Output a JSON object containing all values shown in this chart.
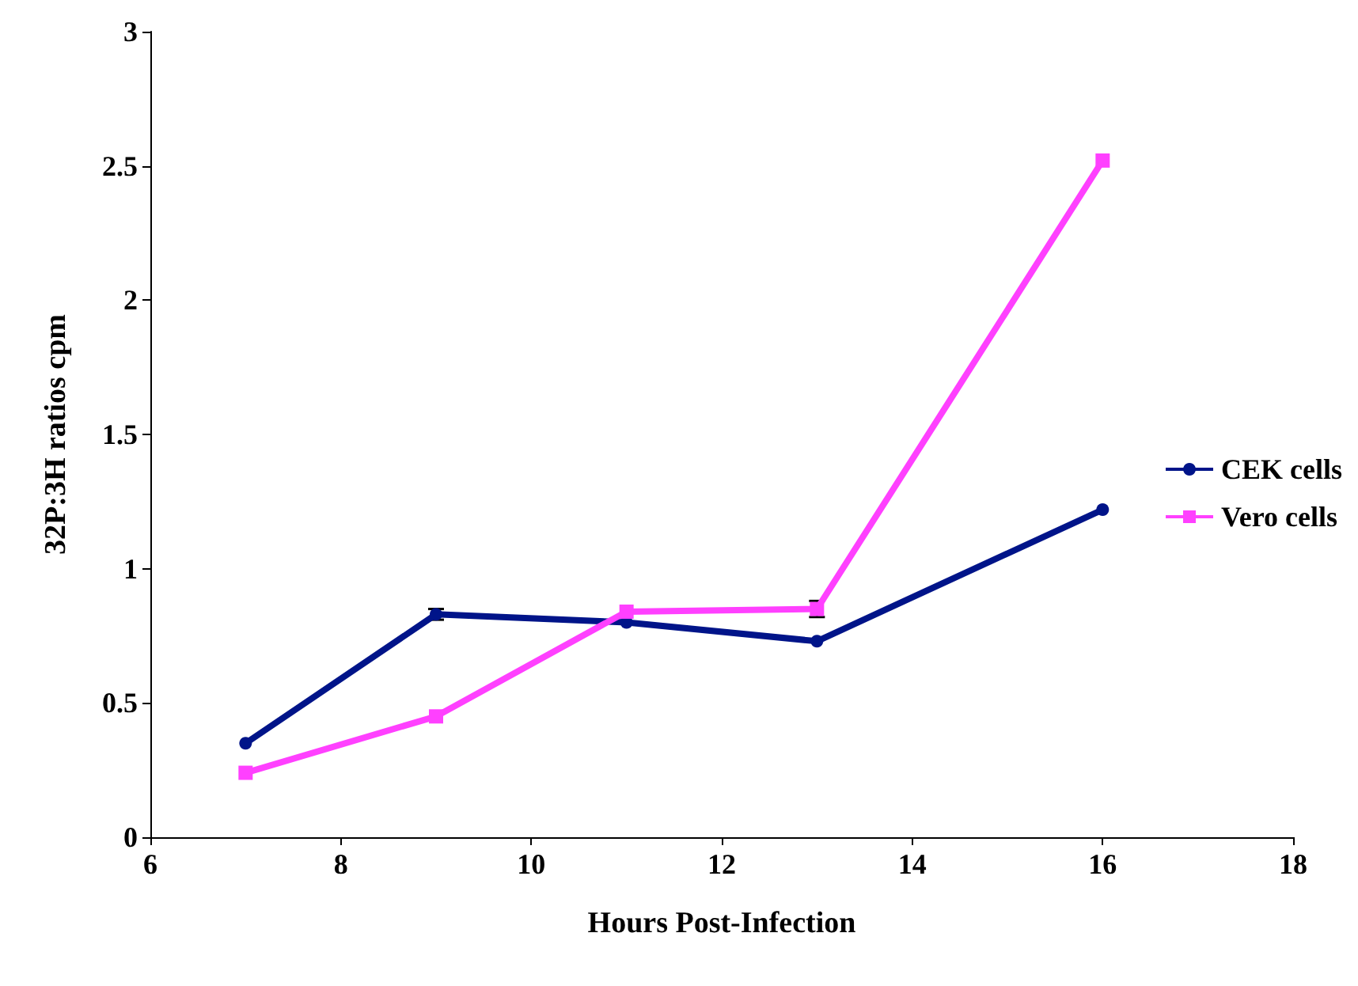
{
  "chart_data": {
    "type": "line",
    "xlabel": "Hours Post-Infection",
    "ylabel": "32P:3H ratios cpm",
    "x": [
      7,
      9,
      11,
      13,
      16
    ],
    "series": [
      {
        "name": "CEK cells",
        "color": "#001489",
        "marker": "circle",
        "values": [
          0.35,
          0.83,
          0.8,
          0.73,
          1.22
        ],
        "errors": [
          null,
          0.02,
          null,
          null,
          null
        ]
      },
      {
        "name": "Vero cells",
        "color": "#ff40ff",
        "marker": "square",
        "values": [
          0.24,
          0.45,
          0.84,
          0.85,
          2.52
        ],
        "errors": [
          null,
          null,
          null,
          0.03,
          null
        ]
      }
    ],
    "xlim": [
      6,
      18
    ],
    "xticks": [
      6,
      8,
      10,
      12,
      14,
      16,
      18
    ],
    "ylim": [
      0,
      3
    ],
    "yticks": [
      0,
      0.5,
      1,
      1.5,
      2,
      2.5,
      3
    ],
    "grid": false,
    "legend": "right"
  }
}
